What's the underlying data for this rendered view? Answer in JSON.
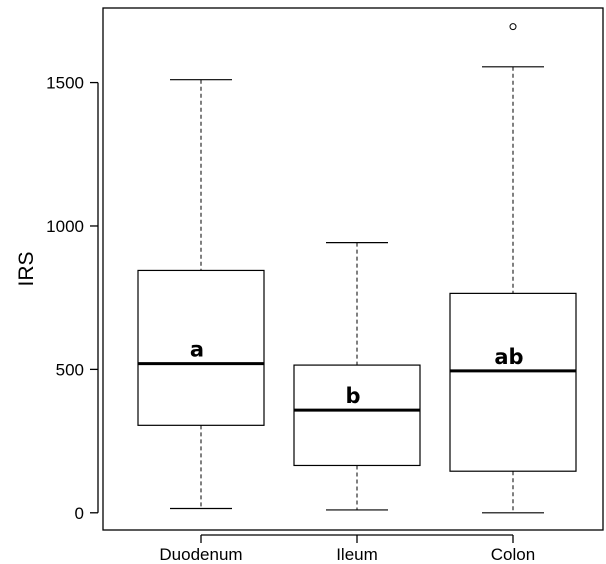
{
  "chart_data": {
    "type": "boxplot",
    "title": "",
    "xlabel": "",
    "ylabel": "IRS",
    "ylim": [
      -60,
      1760
    ],
    "yticks": [
      0,
      500,
      1000,
      1500
    ],
    "grid": false,
    "categories": [
      "Duodenum",
      "Ileum",
      "Colon"
    ],
    "boxes": [
      {
        "category": "Duodenum",
        "min": 15,
        "q1": 305,
        "median": 520,
        "q3": 845,
        "max": 1510,
        "outliers": [],
        "letter": "a"
      },
      {
        "category": "Ileum",
        "min": 10,
        "q1": 165,
        "median": 358,
        "q3": 515,
        "max": 942,
        "outliers": [],
        "letter": "b"
      },
      {
        "category": "Colon",
        "min": 0,
        "q1": 145,
        "median": 495,
        "q3": 765,
        "max": 1555,
        "outliers": [
          1695
        ],
        "letter": "ab"
      }
    ]
  }
}
